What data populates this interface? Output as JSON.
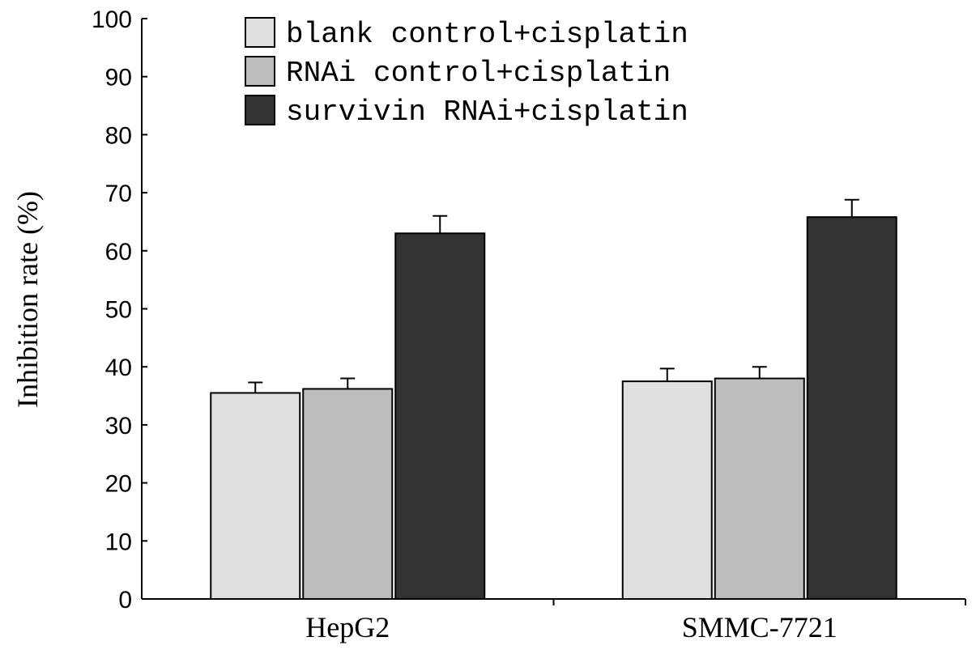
{
  "chart_data": {
    "type": "bar",
    "categories": [
      "HepG2",
      "SMMC-7721"
    ],
    "series": [
      {
        "name": "blank control+cisplatin",
        "values": [
          35.5,
          37.5
        ],
        "errors": [
          1.8,
          2.2
        ],
        "color": "#e0e0e0"
      },
      {
        "name": "RNAi control+cisplatin",
        "values": [
          36.2,
          38.0
        ],
        "errors": [
          1.8,
          2.0
        ],
        "color": "#bdbdbd"
      },
      {
        "name": "survivin RNAi+cisplatin",
        "values": [
          63.0,
          65.8
        ],
        "errors": [
          3.0,
          3.0
        ],
        "color": "#333333"
      }
    ],
    "title": "",
    "xlabel": "",
    "ylabel": "Inhibition rate (%)",
    "ylim": [
      0,
      100
    ],
    "yticks": [
      0,
      10,
      20,
      30,
      40,
      50,
      60,
      70,
      80,
      90,
      100
    ],
    "grid": false,
    "legend_position": "top-left"
  }
}
